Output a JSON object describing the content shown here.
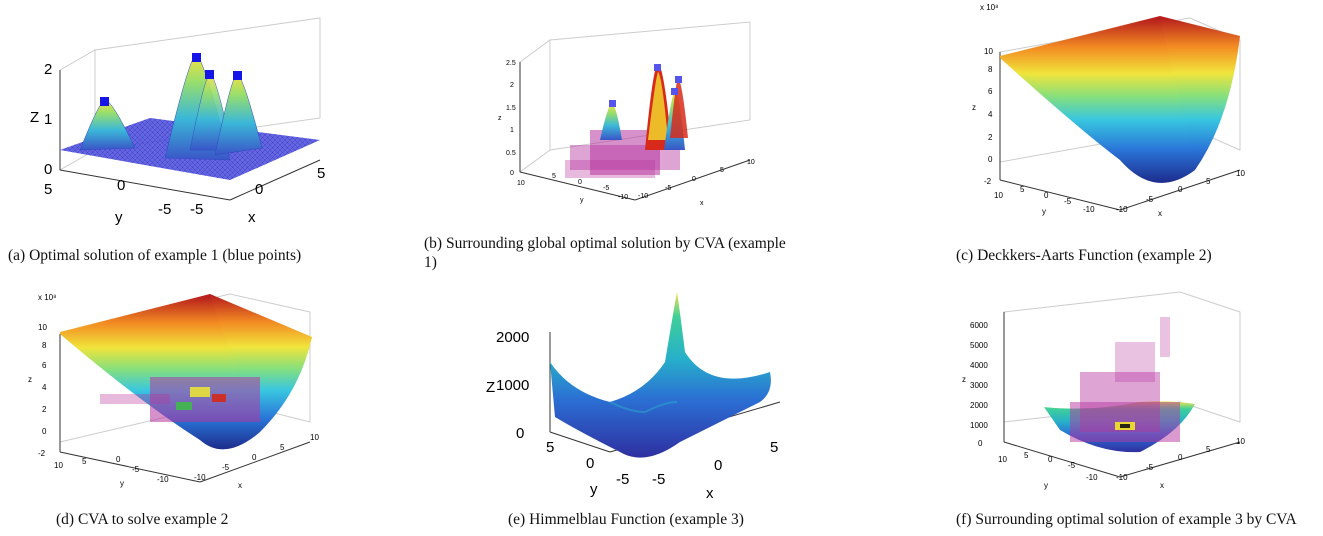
{
  "panels": [
    {
      "caption": "(a) Optimal solution of example 1 (blue points)",
      "z_ticks": [
        "0",
        "1",
        "2"
      ],
      "y_ticks": [
        "5",
        "0",
        "-5"
      ],
      "x_ticks": [
        "-5",
        "0",
        "5"
      ],
      "xlabel": "x",
      "ylabel": "y",
      "zlabel": "Z"
    },
    {
      "caption_line1": "(b) Surrounding global optimal solution by CVA (example",
      "caption_line2": "1)",
      "z_ticks": [
        "0",
        "0.5",
        "1",
        "1.5",
        "2",
        "2.5"
      ],
      "y_ticks": [
        "10",
        "5",
        "0",
        "-5",
        "-10"
      ],
      "x_ticks": [
        "-10",
        "-5",
        "0",
        "5",
        "10"
      ],
      "xlabel": "x",
      "ylabel": "y",
      "zlabel": "z"
    },
    {
      "caption": "(c) Deckkers-Aarts Function (example 2)",
      "z_exp": "x 10⁸",
      "z_ticks": [
        "-2",
        "0",
        "2",
        "4",
        "6",
        "8",
        "10"
      ],
      "y_ticks": [
        "10",
        "5",
        "0",
        "-5",
        "-10"
      ],
      "x_ticks": [
        "-10",
        "-5",
        "0",
        "5",
        "10"
      ],
      "xlabel": "x",
      "ylabel": "y",
      "zlabel": "z"
    },
    {
      "caption": "(d) CVA to solve example 2",
      "z_exp": "x 10⁸",
      "z_ticks": [
        "-2",
        "0",
        "2",
        "4",
        "6",
        "8",
        "10"
      ],
      "y_ticks": [
        "10",
        "5",
        "0",
        "-5",
        "-10"
      ],
      "x_ticks": [
        "-10",
        "-5",
        "0",
        "5",
        "10"
      ],
      "xlabel": "x",
      "ylabel": "y",
      "zlabel": "z"
    },
    {
      "caption": "(e) Himmelblau Function (example 3)",
      "z_ticks": [
        "0",
        "1000",
        "2000"
      ],
      "y_ticks": [
        "5",
        "0",
        "-5"
      ],
      "x_ticks": [
        "-5",
        "0",
        "5"
      ],
      "xlabel": "x",
      "ylabel": "y",
      "zlabel": "Z"
    },
    {
      "caption": "(f) Surrounding optimal solution of example 3 by CVA",
      "z_ticks": [
        "0",
        "1000",
        "2000",
        "3000",
        "4000",
        "5000",
        "6000"
      ],
      "y_ticks": [
        "10",
        "5",
        "0",
        "-5",
        "-10"
      ],
      "x_ticks": [
        "-10",
        "-5",
        "0",
        "5",
        "10"
      ],
      "xlabel": "x",
      "ylabel": "y",
      "zlabel": "z"
    }
  ]
}
